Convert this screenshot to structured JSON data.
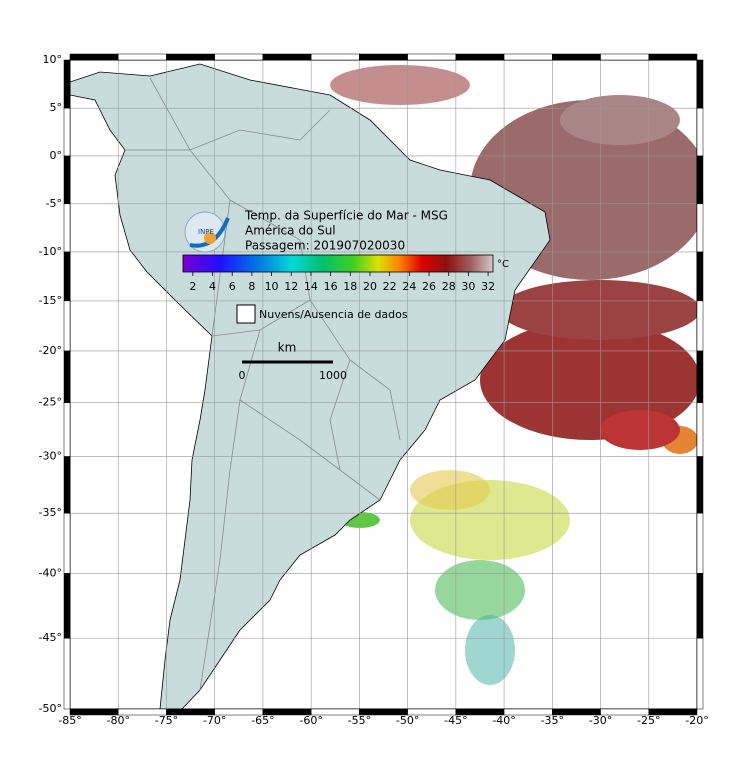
{
  "chart_data": {
    "type": "map",
    "title_lines": [
      "Temp. da Superfície do Mar - MSG",
      "América do Sul",
      "Passagem: 201907020030"
    ],
    "xlim": [
      -85,
      -20
    ],
    "xticks": [
      {
        "value": -85,
        "label": "-85°"
      },
      {
        "value": -80,
        "label": "-80°"
      },
      {
        "value": -75,
        "label": "-75°"
      },
      {
        "value": -70,
        "label": "-70°"
      },
      {
        "value": -65,
        "label": "-65°"
      },
      {
        "value": -60,
        "label": "-60°"
      },
      {
        "value": -55,
        "label": "-55°"
      },
      {
        "value": -50,
        "label": "-50°"
      },
      {
        "value": -45,
        "label": "-45°"
      },
      {
        "value": -40,
        "label": "-40°"
      },
      {
        "value": -35,
        "label": "-35°"
      },
      {
        "value": -30,
        "label": "-30°"
      },
      {
        "value": -25,
        "label": "-25°"
      },
      {
        "value": -20,
        "label": "-20°"
      }
    ],
    "ylim": [
      -50,
      10
    ],
    "yticks": [
      {
        "value": 10,
        "label": "10°"
      },
      {
        "value": 5,
        "label": "5°"
      },
      {
        "value": 0,
        "label": "0°"
      },
      {
        "value": -5,
        "label": "-5°"
      },
      {
        "value": -10,
        "label": "-10°"
      },
      {
        "value": -15,
        "label": "-15°"
      },
      {
        "value": -20,
        "label": "-20°"
      },
      {
        "value": -25,
        "label": "-25°"
      },
      {
        "value": -30,
        "label": "-30°"
      },
      {
        "value": -35,
        "label": "-35°"
      },
      {
        "value": -40,
        "label": "-40°"
      },
      {
        "value": -45,
        "label": "-45°"
      },
      {
        "value": -50,
        "label": "-50°"
      }
    ],
    "grid": true,
    "colorbar": {
      "unit": "°C",
      "clim": [
        1,
        32.5
      ],
      "ticks": [
        2,
        4,
        6,
        8,
        10,
        12,
        14,
        16,
        18,
        20,
        22,
        24,
        26,
        28,
        30,
        32
      ]
    },
    "legend": "Nuvens/Ausencia de dados",
    "scale_bar": {
      "unit": "km",
      "labels": [
        "0",
        "1000"
      ]
    },
    "logo": "INPE"
  }
}
